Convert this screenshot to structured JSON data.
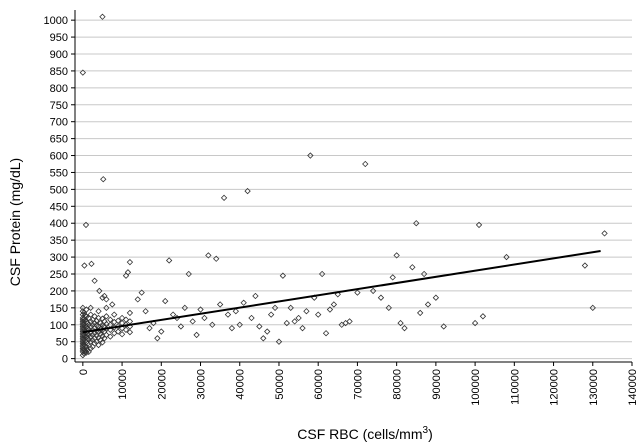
{
  "chart_data": {
    "type": "scatter",
    "title": "",
    "xlabel_main": "CSF RBC (cells/mm",
    "xlabel_sup": "3",
    "xlabel_end": ")",
    "ylabel": "CSF Protein (mg/dL)",
    "xlim": [
      -2000,
      140000
    ],
    "ylim": [
      -10,
      1030
    ],
    "x_ticks": [
      0,
      10000,
      20000,
      30000,
      40000,
      50000,
      60000,
      70000,
      80000,
      90000,
      100000,
      110000,
      120000,
      130000,
      140000
    ],
    "y_ticks": [
      0,
      50,
      100,
      150,
      200,
      250,
      300,
      350,
      400,
      450,
      500,
      550,
      600,
      650,
      700,
      750,
      800,
      850,
      900,
      950,
      1000
    ],
    "grid": "horizontal",
    "marker": "open-diamond",
    "series": [
      {
        "points": [
          [
            0,
            10
          ],
          [
            0,
            20
          ],
          [
            0,
            25
          ],
          [
            0,
            30
          ],
          [
            0,
            35
          ],
          [
            0,
            40
          ],
          [
            0,
            45
          ],
          [
            0,
            50
          ],
          [
            0,
            55
          ],
          [
            0,
            60
          ],
          [
            0,
            65
          ],
          [
            0,
            70
          ],
          [
            0,
            75
          ],
          [
            0,
            80
          ],
          [
            0,
            85
          ],
          [
            0,
            90
          ],
          [
            0,
            95
          ],
          [
            0,
            100
          ],
          [
            0,
            105
          ],
          [
            0,
            110
          ],
          [
            0,
            115
          ],
          [
            0,
            120
          ],
          [
            0,
            130
          ],
          [
            0,
            140
          ],
          [
            0,
            150
          ],
          [
            300,
            15
          ],
          [
            300,
            28
          ],
          [
            300,
            42
          ],
          [
            300,
            58
          ],
          [
            300,
            72
          ],
          [
            300,
            88
          ],
          [
            300,
            102
          ],
          [
            300,
            118
          ],
          [
            300,
            135
          ],
          [
            600,
            22
          ],
          [
            600,
            38
          ],
          [
            600,
            52
          ],
          [
            600,
            66
          ],
          [
            600,
            80
          ],
          [
            600,
            96
          ],
          [
            600,
            112
          ],
          [
            600,
            128
          ],
          [
            900,
            18
          ],
          [
            900,
            34
          ],
          [
            900,
            48
          ],
          [
            900,
            62
          ],
          [
            900,
            76
          ],
          [
            900,
            92
          ],
          [
            900,
            108
          ],
          [
            900,
            124
          ],
          [
            900,
            145
          ],
          [
            1200,
            26
          ],
          [
            1200,
            44
          ],
          [
            1200,
            60
          ],
          [
            1200,
            74
          ],
          [
            1200,
            90
          ],
          [
            1200,
            106
          ],
          [
            1500,
            20
          ],
          [
            1500,
            40
          ],
          [
            1500,
            56
          ],
          [
            1500,
            70
          ],
          [
            1500,
            86
          ],
          [
            1500,
            100
          ],
          [
            1500,
            120
          ],
          [
            2000,
            30
          ],
          [
            2000,
            50
          ],
          [
            2000,
            65
          ],
          [
            2000,
            80
          ],
          [
            2000,
            95
          ],
          [
            2000,
            110
          ],
          [
            2000,
            130
          ],
          [
            2000,
            150
          ],
          [
            2500,
            35
          ],
          [
            2500,
            55
          ],
          [
            2500,
            70
          ],
          [
            2500,
            85
          ],
          [
            2500,
            100
          ],
          [
            2500,
            115
          ],
          [
            3000,
            45
          ],
          [
            3000,
            60
          ],
          [
            3000,
            75
          ],
          [
            3000,
            90
          ],
          [
            3000,
            105
          ],
          [
            3000,
            125
          ],
          [
            3500,
            50
          ],
          [
            3500,
            68
          ],
          [
            3500,
            82
          ],
          [
            3500,
            98
          ],
          [
            3500,
            112
          ],
          [
            4000,
            40
          ],
          [
            4000,
            62
          ],
          [
            4000,
            78
          ],
          [
            4000,
            95
          ],
          [
            4000,
            120
          ],
          [
            4000,
            140
          ],
          [
            4500,
            55
          ],
          [
            4500,
            72
          ],
          [
            4500,
            88
          ],
          [
            4500,
            105
          ],
          [
            5000,
            48
          ],
          [
            5000,
            66
          ],
          [
            5000,
            84
          ],
          [
            5000,
            100
          ],
          [
            5000,
            118
          ],
          [
            5000,
            180
          ],
          [
            5500,
            60
          ],
          [
            5500,
            80
          ],
          [
            5500,
            95
          ],
          [
            5500,
            110
          ],
          [
            6000,
            70
          ],
          [
            6000,
            88
          ],
          [
            6000,
            102
          ],
          [
            6000,
            125
          ],
          [
            6000,
            150
          ],
          [
            7000,
            65
          ],
          [
            7000,
            85
          ],
          [
            7000,
            100
          ],
          [
            7000,
            115
          ],
          [
            8000,
            75
          ],
          [
            8000,
            92
          ],
          [
            8000,
            108
          ],
          [
            8000,
            130
          ],
          [
            9000,
            80
          ],
          [
            9000,
            96
          ],
          [
            9000,
            112
          ],
          [
            10000,
            72
          ],
          [
            10000,
            90
          ],
          [
            10000,
            105
          ],
          [
            10000,
            120
          ],
          [
            11000,
            85
          ],
          [
            11000,
            100
          ],
          [
            11000,
            115
          ],
          [
            12000,
            78
          ],
          [
            12000,
            95
          ],
          [
            12000,
            110
          ],
          [
            12000,
            135
          ],
          [
            0,
            845
          ],
          [
            400,
            275
          ],
          [
            800,
            395
          ],
          [
            2200,
            280
          ],
          [
            3000,
            230
          ],
          [
            4200,
            200
          ],
          [
            5000,
            1010
          ],
          [
            5200,
            530
          ],
          [
            5500,
            185
          ],
          [
            6000,
            175
          ],
          [
            7500,
            160
          ],
          [
            11000,
            245
          ],
          [
            11500,
            255
          ],
          [
            12000,
            285
          ],
          [
            14000,
            175
          ],
          [
            15000,
            195
          ],
          [
            16000,
            140
          ],
          [
            17000,
            90
          ],
          [
            18000,
            105
          ],
          [
            19000,
            60
          ],
          [
            20000,
            80
          ],
          [
            21000,
            170
          ],
          [
            22000,
            290
          ],
          [
            23000,
            130
          ],
          [
            24000,
            120
          ],
          [
            25000,
            95
          ],
          [
            26000,
            150
          ],
          [
            27000,
            250
          ],
          [
            28000,
            110
          ],
          [
            29000,
            70
          ],
          [
            30000,
            145
          ],
          [
            31000,
            120
          ],
          [
            32000,
            305
          ],
          [
            33000,
            100
          ],
          [
            34000,
            295
          ],
          [
            35000,
            160
          ],
          [
            36000,
            475
          ],
          [
            37000,
            130
          ],
          [
            38000,
            90
          ],
          [
            39000,
            140
          ],
          [
            40000,
            100
          ],
          [
            41000,
            165
          ],
          [
            42000,
            495
          ],
          [
            43000,
            120
          ],
          [
            44000,
            185
          ],
          [
            45000,
            95
          ],
          [
            46000,
            60
          ],
          [
            47000,
            80
          ],
          [
            48000,
            130
          ],
          [
            49000,
            150
          ],
          [
            50000,
            50
          ],
          [
            51000,
            245
          ],
          [
            52000,
            105
          ],
          [
            53000,
            150
          ],
          [
            54000,
            110
          ],
          [
            55000,
            120
          ],
          [
            56000,
            90
          ],
          [
            57000,
            140
          ],
          [
            58000,
            600
          ],
          [
            59000,
            180
          ],
          [
            60000,
            130
          ],
          [
            61000,
            250
          ],
          [
            62000,
            75
          ],
          [
            63000,
            145
          ],
          [
            64000,
            160
          ],
          [
            65000,
            190
          ],
          [
            66000,
            100
          ],
          [
            67000,
            105
          ],
          [
            68000,
            110
          ],
          [
            70000,
            195
          ],
          [
            72000,
            575
          ],
          [
            74000,
            200
          ],
          [
            76000,
            180
          ],
          [
            78000,
            150
          ],
          [
            79000,
            240
          ],
          [
            80000,
            305
          ],
          [
            81000,
            105
          ],
          [
            82000,
            90
          ],
          [
            84000,
            270
          ],
          [
            85000,
            400
          ],
          [
            86000,
            135
          ],
          [
            87000,
            250
          ],
          [
            88000,
            160
          ],
          [
            90000,
            180
          ],
          [
            92000,
            95
          ],
          [
            100000,
            105
          ],
          [
            101000,
            395
          ],
          [
            102000,
            125
          ],
          [
            108000,
            300
          ],
          [
            128000,
            275
          ],
          [
            130000,
            150
          ],
          [
            133000,
            370
          ]
        ]
      }
    ],
    "trendline": {
      "x": [
        0,
        132000
      ],
      "y": [
        78,
        318
      ]
    }
  }
}
